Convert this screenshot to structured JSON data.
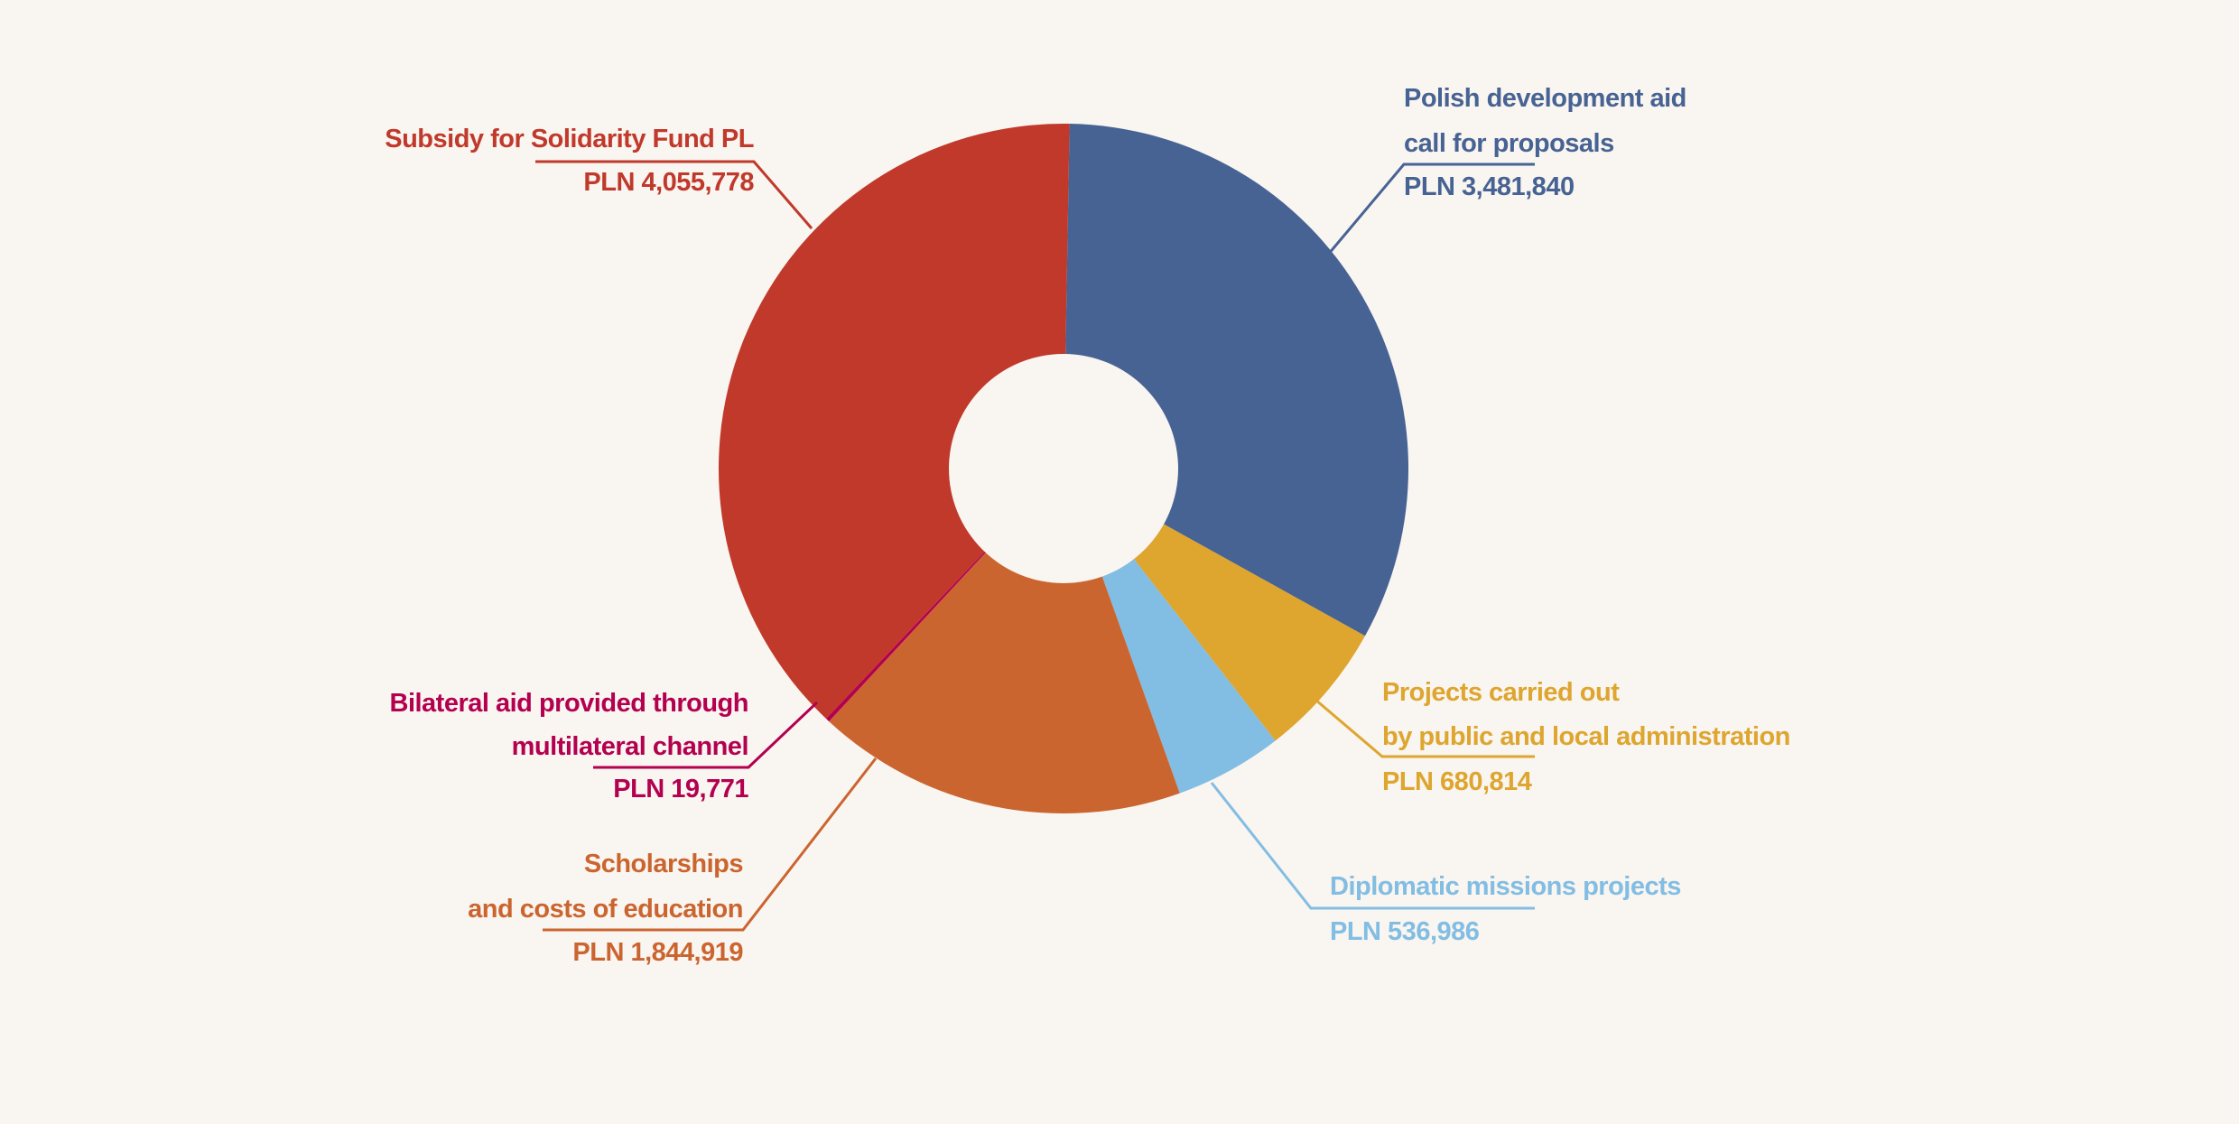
{
  "chart_data": {
    "type": "pie",
    "variant": "donut",
    "title": "",
    "start": "top",
    "direction": "clockwise",
    "currency": "PLN",
    "slices": [
      {
        "label_lines": [
          "Polish development aid",
          "call for proposals"
        ],
        "value": 3481840,
        "value_label": "PLN 3,481,840",
        "color": "#476393"
      },
      {
        "label_lines": [
          "Projects carried out",
          "by public and local administration"
        ],
        "value": 680814,
        "value_label": "PLN 680,814",
        "color": "#dea52f"
      },
      {
        "label_lines": [
          "Diplomatic missions projects"
        ],
        "value": 536986,
        "value_label": "PLN 536,986",
        "color": "#82bde3"
      },
      {
        "label_lines": [
          "Scholarships",
          "and costs of education"
        ],
        "value": 1844919,
        "value_label": "PLN 1,844,919",
        "color": "#cb6530"
      },
      {
        "label_lines": [
          "Bilateral aid provided through",
          "multilateral channel"
        ],
        "value": 19771,
        "value_label": "PLN 19,771",
        "color": "#b3004f"
      },
      {
        "label_lines": [
          "Subsidy for Solidarity Fund PL"
        ],
        "value": 4055778,
        "value_label": "PLN 4,055,778",
        "color": "#c0392b"
      }
    ]
  }
}
